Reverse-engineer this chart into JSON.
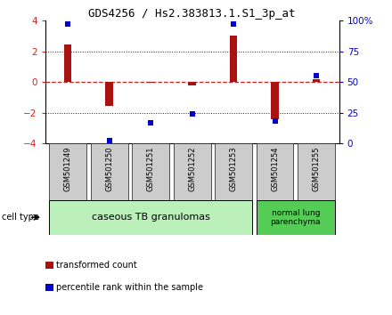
{
  "title": "GDS4256 / Hs2.383813.1.S1_3p_at",
  "samples": [
    "GSM501249",
    "GSM501250",
    "GSM501251",
    "GSM501252",
    "GSM501253",
    "GSM501254",
    "GSM501255"
  ],
  "transformed_count": [
    2.45,
    -1.55,
    -0.05,
    -0.25,
    3.0,
    -2.45,
    0.2
  ],
  "percentile_rank": [
    97,
    2,
    17,
    24,
    97,
    18,
    55
  ],
  "ylim_left": [
    -4,
    4
  ],
  "ylim_right": [
    0,
    100
  ],
  "yticks_left": [
    -4,
    -2,
    0,
    2,
    4
  ],
  "ytick_labels_right": [
    "0",
    "25",
    "50",
    "75",
    "100%"
  ],
  "bar_color": "#aa1111",
  "dot_color": "#0000cc",
  "zero_line_color": "#cc2222",
  "grid_color": "#222222",
  "cell_type_colors": [
    "#bbf0bb",
    "#55cc55"
  ],
  "cell_type_labels": [
    "caseous TB granulomas",
    "normal lung\nparenchyma"
  ],
  "cell_type_group1_count": 5,
  "legend_colors": [
    "#aa1111",
    "#0000cc"
  ],
  "legend_labels": [
    "transformed count",
    "percentile rank within the sample"
  ],
  "cell_type_label": "cell type",
  "background_color": "#ffffff",
  "sample_box_color": "#cccccc",
  "sample_box_edge": "#333333",
  "bar_width": 0.18,
  "dot_size": 5
}
